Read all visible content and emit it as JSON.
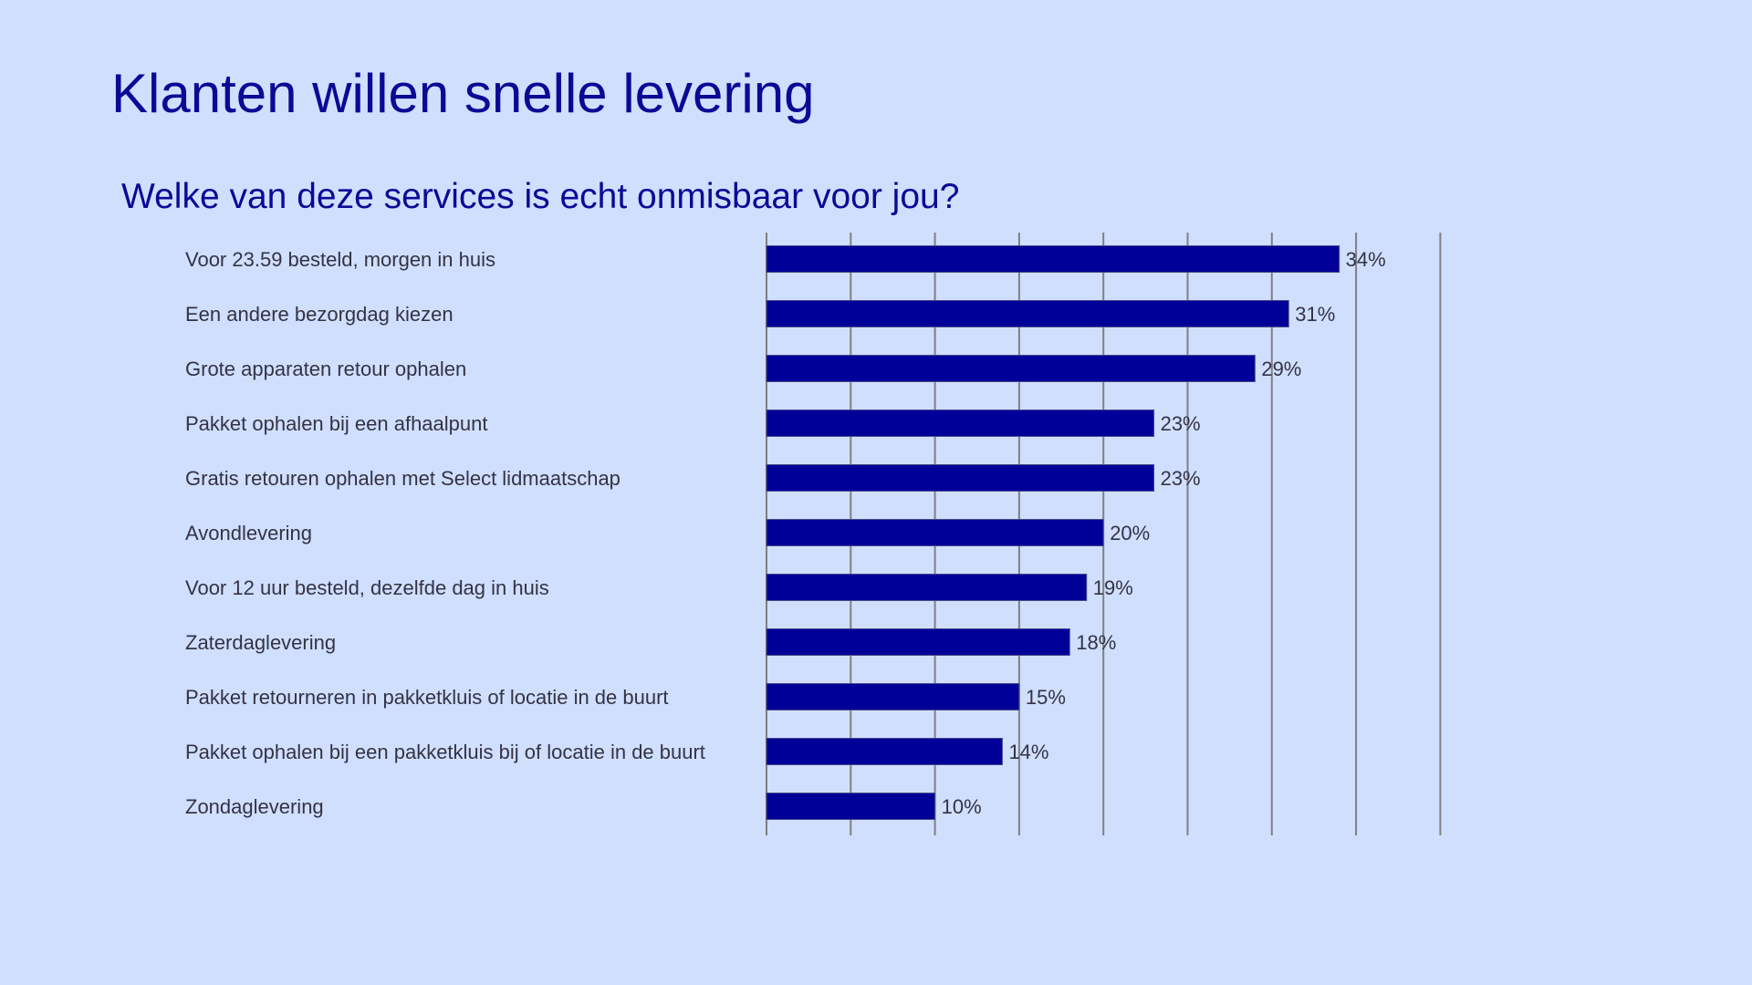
{
  "slide": {
    "title": "Klanten willen snelle levering",
    "subtitle": "Welke van deze services is echt onmisbaar voor jou?"
  },
  "chart_data": {
    "type": "bar",
    "orientation": "horizontal",
    "categories": [
      "Voor 23.59 besteld, morgen in huis",
      "Een andere bezorgdag kiezen",
      "Grote apparaten retour ophalen",
      "Pakket ophalen bij een afhaalpunt",
      "Gratis retouren ophalen met Select lidmaatschap",
      "Avondlevering",
      "Voor 12 uur besteld, dezelfde dag in huis",
      "Zaterdaglevering",
      "Pakket retourneren in pakketkluis of locatie in de buurt",
      "Pakket ophalen bij een pakketkluis bij  of locatie in de buurt",
      "Zondaglevering"
    ],
    "values": [
      34,
      31,
      29,
      23,
      23,
      20,
      19,
      18,
      15,
      14,
      10
    ],
    "data_labels": [
      "34%",
      "31%",
      "29%",
      "23%",
      "23%",
      "20%",
      "19%",
      "18%",
      "15%",
      "14%",
      "10%"
    ],
    "xlim": [
      0,
      40
    ],
    "grid_step": 5,
    "grid": true,
    "bar_color": "#000099",
    "grid_color": "#808080"
  }
}
